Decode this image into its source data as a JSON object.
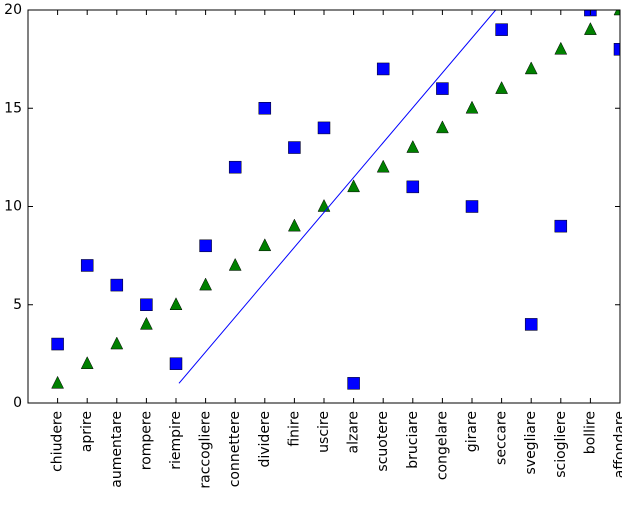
{
  "chart_data": {
    "type": "scatter",
    "categories": [
      "chiudere",
      "aprire",
      "aumentare",
      "rompere",
      "riempire",
      "raccogliere",
      "connettere",
      "dividere",
      "finire",
      "uscire",
      "alzare",
      "scuotere",
      "bruciare",
      "congelare",
      "girare",
      "seccare",
      "svegliare",
      "sciogliere",
      "bollire",
      "affondare"
    ],
    "series": [
      {
        "marker": "square",
        "color": "#0000ff",
        "values": [
          3,
          7,
          6,
          5,
          2,
          8,
          12,
          15,
          13,
          14,
          1,
          17,
          11,
          16,
          10,
          19,
          4,
          9,
          20,
          18
        ]
      },
      {
        "marker": "triangle",
        "color": "#008000",
        "values": [
          1,
          2,
          3,
          4,
          5,
          6,
          7,
          8,
          9,
          10,
          11,
          12,
          13,
          14,
          15,
          16,
          17,
          18,
          19,
          20
        ]
      },
      {
        "marker": "line",
        "color": "#0000ff",
        "x": [
          4.1,
          14.8
        ],
        "values": [
          1,
          20
        ]
      }
    ],
    "xlim": [
      -1,
      19
    ],
    "ylim": [
      0,
      20
    ],
    "yticks": [
      0,
      5,
      10,
      15,
      20
    ]
  }
}
